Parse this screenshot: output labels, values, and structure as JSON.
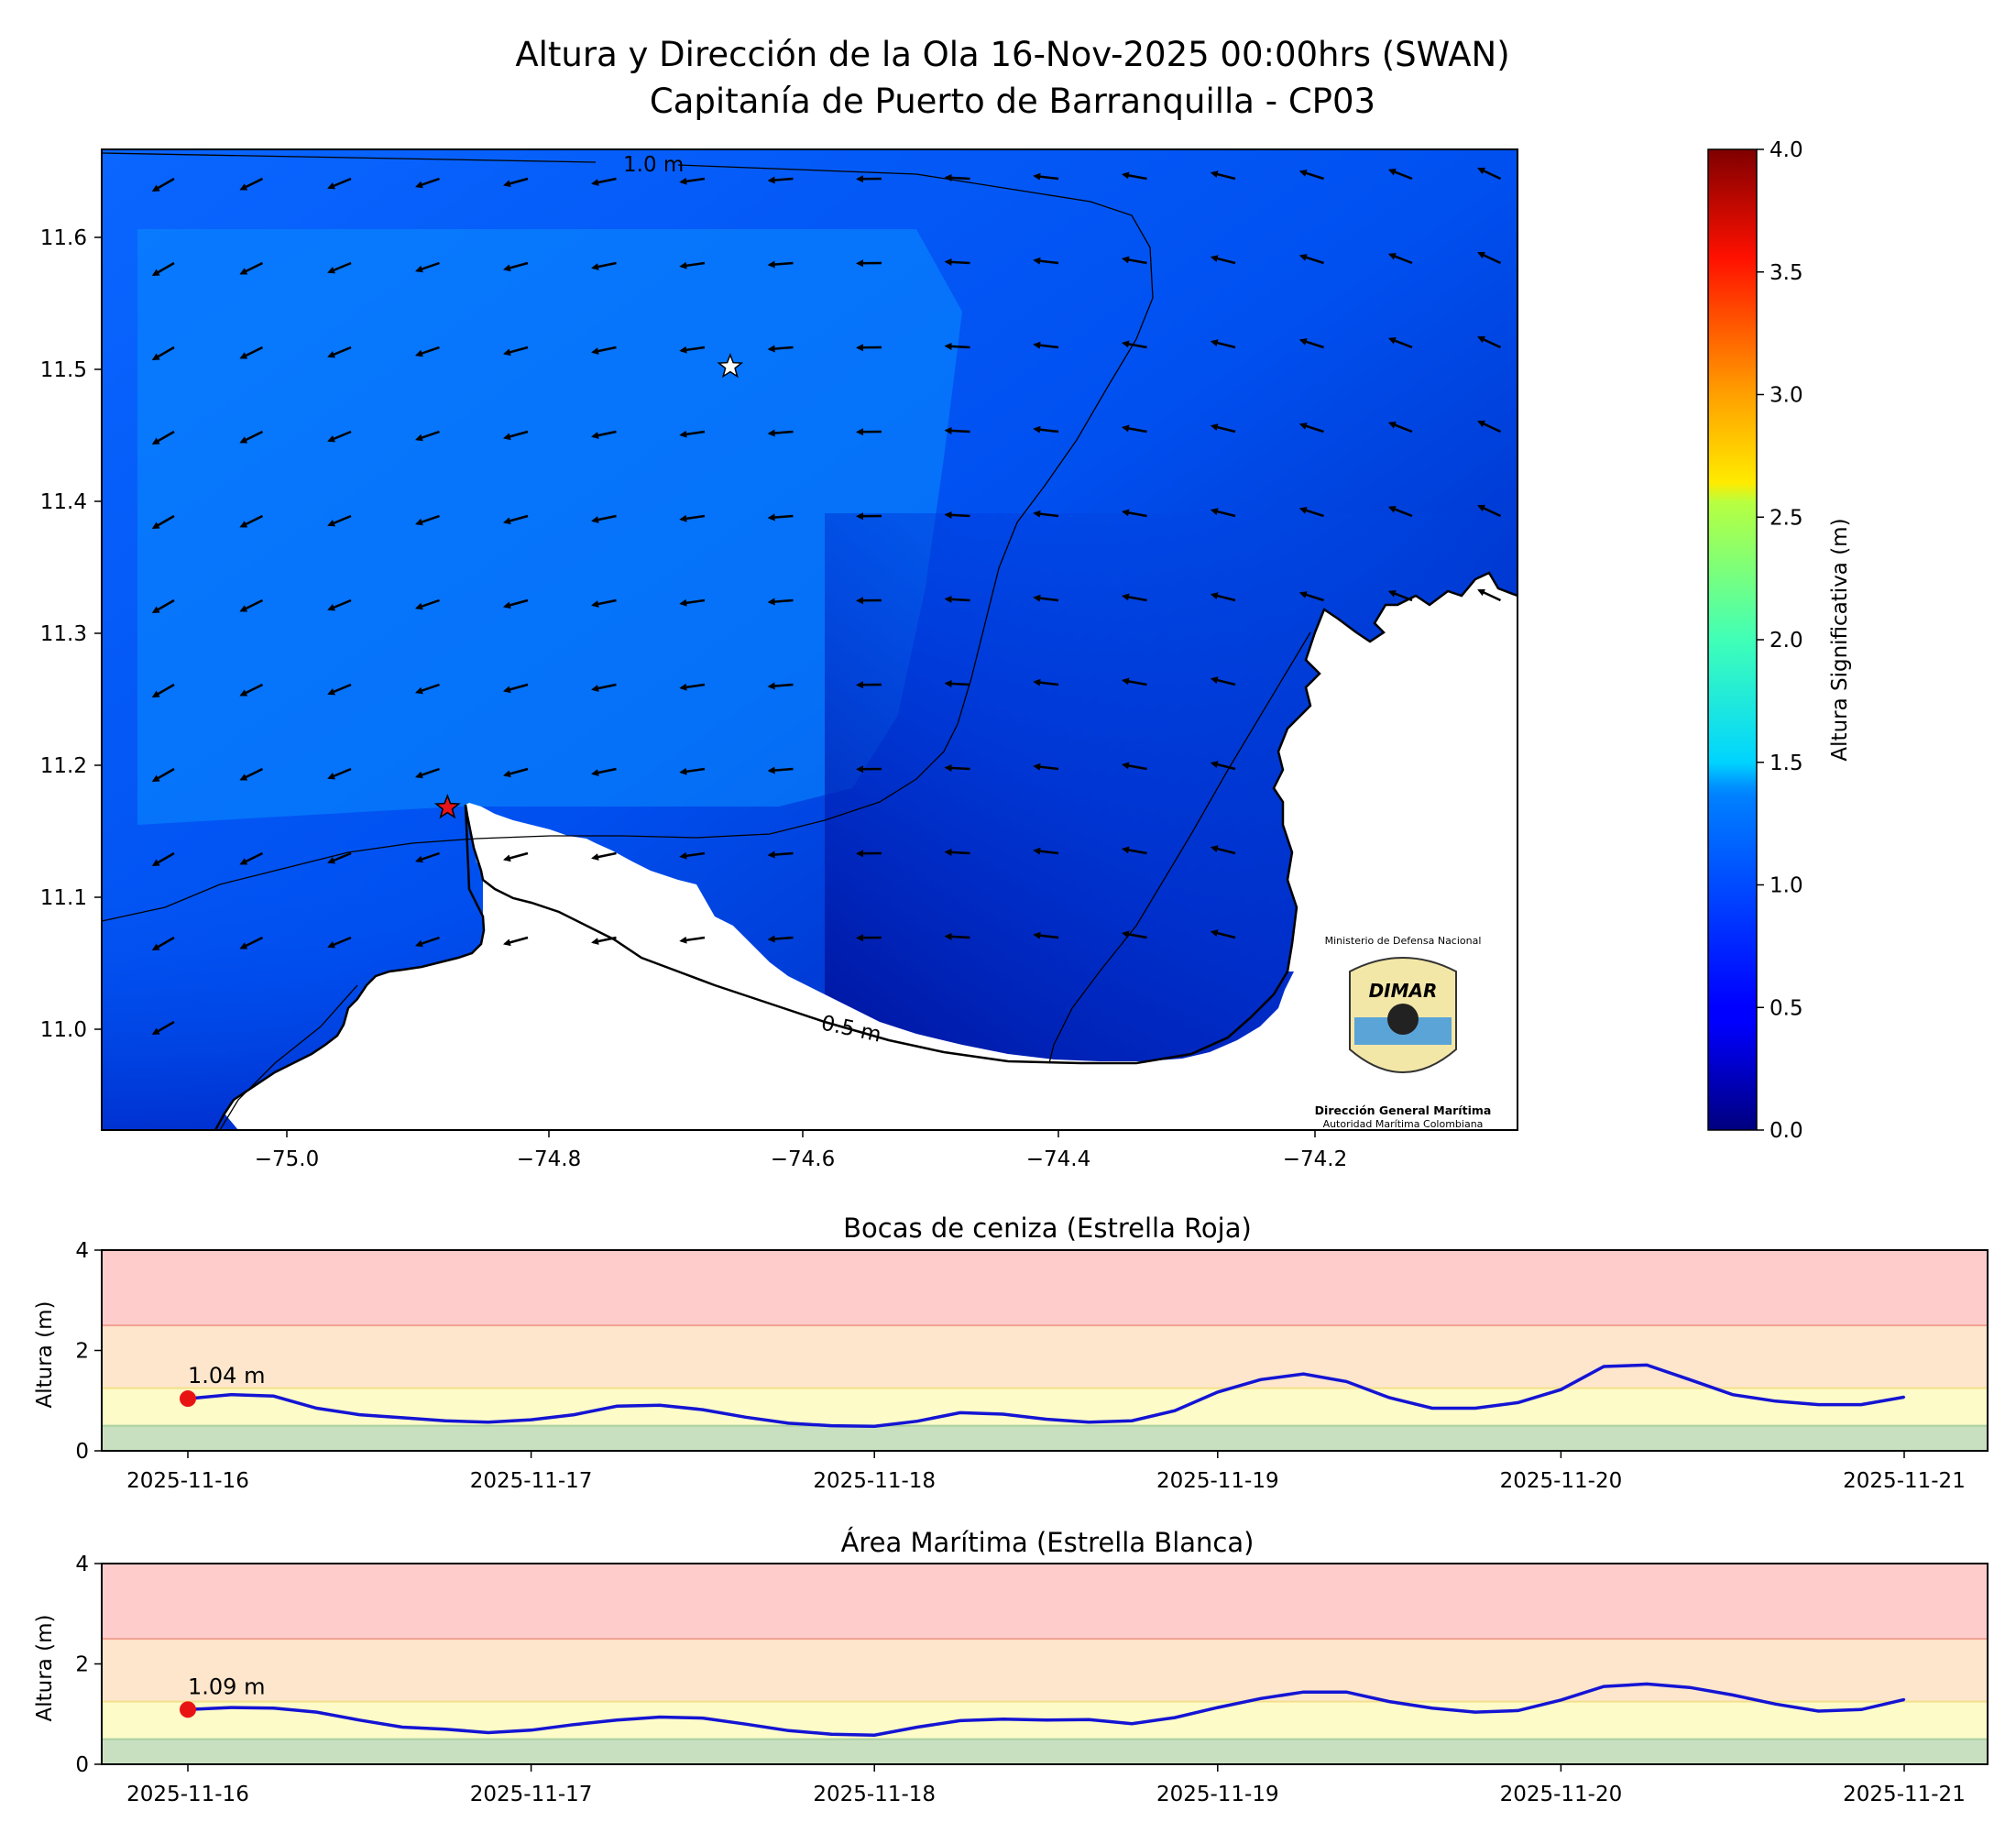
{
  "figure": {
    "title_line1": "Altura y Dirección de la Ola 16-Nov-2025 00:00hrs (SWAN)",
    "title_line2": "Capitanía de Puerto de Barranquilla - CP03"
  },
  "map": {
    "xticks": [
      "−75.0",
      "−74.8",
      "−74.6",
      "−74.4",
      "−74.2"
    ],
    "yticks": [
      "11.6",
      "11.5",
      "11.4",
      "11.3",
      "11.2",
      "11.1",
      "11.0"
    ],
    "contour_labels": [
      "1.0 m",
      "0.5 m"
    ],
    "markers": [
      {
        "name": "Estrella Roja",
        "lon": -74.875,
        "lat": 11.168,
        "color": "#e8141a"
      },
      {
        "name": "Estrella Blanca",
        "lon": -74.655,
        "lat": 11.502,
        "color": "#ffffff"
      }
    ],
    "logo": {
      "top_text": "Ministerio de Defensa Nacional",
      "brand_text": "DIMAR",
      "name_text": "Dirección General Marítima",
      "sub_text": "Autoridad Marítima Colombiana"
    }
  },
  "colorbar": {
    "label": "Altura Significativa (m)",
    "ticks": [
      "0.0",
      "0.5",
      "1.0",
      "1.5",
      "2.0",
      "2.5",
      "3.0",
      "3.5",
      "4.0"
    ],
    "colormap": "jet",
    "range": [
      0,
      4
    ]
  },
  "chart_data": [
    {
      "type": "line",
      "title": "Bocas de ceniza (Estrella Roja)",
      "ylabel": "Altura (m)",
      "ylim": [
        0,
        4
      ],
      "yticks": [
        "0",
        "2",
        "4"
      ],
      "xlabels": [
        "2025-11-16",
        "2025-11-17",
        "2025-11-18",
        "2025-11-19",
        "2025-11-20",
        "2025-11-21"
      ],
      "thresholds": [
        0.5,
        1.25,
        2.5
      ],
      "threshold_colors": [
        "#c8e0c0",
        "#fdfbc8",
        "#fde6cc",
        "#ffcccc"
      ],
      "current_label": "1.04 m",
      "line_color": "#1414d4",
      "x_days": [
        0,
        0.125,
        0.25,
        0.375,
        0.5,
        0.625,
        0.75,
        0.875,
        1.0,
        1.125,
        1.25,
        1.375,
        1.5,
        1.625,
        1.75,
        1.875,
        2.0,
        2.125,
        2.25,
        2.375,
        2.5,
        2.625,
        2.75,
        2.875,
        3.0,
        3.125,
        3.25,
        3.375,
        3.5,
        3.625,
        3.75,
        3.875,
        4.0,
        4.125,
        4.25,
        4.375,
        4.5,
        4.625,
        4.75,
        4.875,
        5.0
      ],
      "values": [
        1.04,
        1.12,
        1.09,
        0.85,
        0.72,
        0.66,
        0.6,
        0.57,
        0.62,
        0.72,
        0.89,
        0.91,
        0.82,
        0.67,
        0.55,
        0.5,
        0.49,
        0.59,
        0.76,
        0.73,
        0.63,
        0.57,
        0.6,
        0.8,
        1.17,
        1.42,
        1.53,
        1.38,
        1.06,
        0.85,
        0.85,
        0.96,
        1.22,
        1.68,
        1.71,
        1.42,
        1.12,
        0.99,
        0.92,
        0.92,
        1.07
      ]
    },
    {
      "type": "line",
      "title": "Área Marítima (Estrella Blanca)",
      "ylabel": "Altura (m)",
      "ylim": [
        0,
        4
      ],
      "yticks": [
        "0",
        "2",
        "4"
      ],
      "xlabels": [
        "2025-11-16",
        "2025-11-17",
        "2025-11-18",
        "2025-11-19",
        "2025-11-20",
        "2025-11-21"
      ],
      "thresholds": [
        0.5,
        1.25,
        2.5
      ],
      "threshold_colors": [
        "#c8e0c0",
        "#fdfbc8",
        "#fde6cc",
        "#ffcccc"
      ],
      "current_label": "1.09 m",
      "line_color": "#1414d4",
      "x_days": [
        0,
        0.125,
        0.25,
        0.375,
        0.5,
        0.625,
        0.75,
        0.875,
        1.0,
        1.125,
        1.25,
        1.375,
        1.5,
        1.625,
        1.75,
        1.875,
        2.0,
        2.125,
        2.25,
        2.375,
        2.5,
        2.625,
        2.75,
        2.875,
        3.0,
        3.125,
        3.25,
        3.375,
        3.5,
        3.625,
        3.75,
        3.875,
        4.0,
        4.125,
        4.25,
        4.375,
        4.5,
        4.625,
        4.75,
        4.875,
        5.0
      ],
      "values": [
        1.09,
        1.13,
        1.12,
        1.04,
        0.88,
        0.74,
        0.7,
        0.63,
        0.68,
        0.79,
        0.88,
        0.94,
        0.92,
        0.8,
        0.67,
        0.6,
        0.58,
        0.74,
        0.87,
        0.9,
        0.88,
        0.89,
        0.81,
        0.93,
        1.13,
        1.31,
        1.44,
        1.44,
        1.25,
        1.12,
        1.04,
        1.07,
        1.28,
        1.55,
        1.6,
        1.53,
        1.38,
        1.2,
        1.06,
        1.09,
        1.29
      ]
    }
  ]
}
